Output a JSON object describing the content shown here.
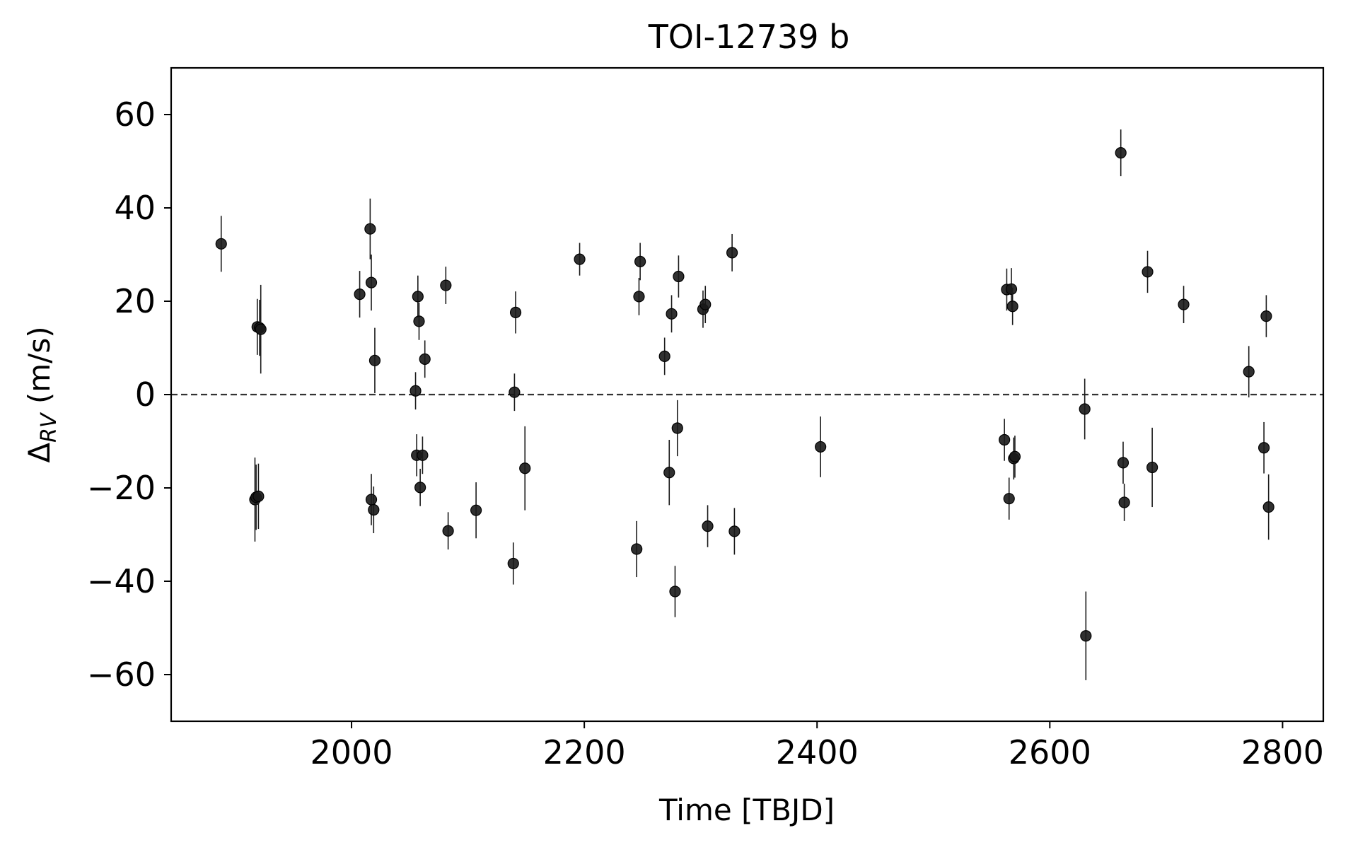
{
  "chart_data": {
    "type": "scatter",
    "title": "TOI-12739 b",
    "xlabel": "Time [TBJD]",
    "ylabel_main": "Δ",
    "ylabel_sub": "RV",
    "ylabel_unit": " (m/s)",
    "xlim": [
      1845,
      2835
    ],
    "ylim": [
      -70,
      70
    ],
    "xticks": [
      2000,
      2200,
      2400,
      2600,
      2800
    ],
    "yticks": [
      60,
      40,
      20,
      0,
      -20,
      -40,
      -60
    ],
    "xtick_labels": [
      "2000",
      "2200",
      "2400",
      "2600",
      "2800"
    ],
    "ytick_labels": [
      "60",
      "40",
      "20",
      "0",
      "−20",
      "−40",
      "−60"
    ],
    "grid": false,
    "reference_line": 0,
    "marker_color": "#1a1a1a",
    "points": [
      {
        "x": 1888,
        "y": 32.3,
        "err": 6.0
      },
      {
        "x": 1917,
        "y": -22.5,
        "err": 9.0
      },
      {
        "x": 1918,
        "y": -22.0,
        "err": 7.0
      },
      {
        "x": 1919,
        "y": 14.5,
        "err": 6.0
      },
      {
        "x": 1920,
        "y": -21.8,
        "err": 7.0
      },
      {
        "x": 1921,
        "y": 14.3,
        "err": 6.0
      },
      {
        "x": 1922,
        "y": 14.0,
        "err": 9.5
      },
      {
        "x": 2007,
        "y": 21.5,
        "err": 5.0
      },
      {
        "x": 2016,
        "y": 35.5,
        "err": 6.5
      },
      {
        "x": 2017,
        "y": 24.0,
        "err": 6.0
      },
      {
        "x": 2017,
        "y": -22.5,
        "err": 5.5
      },
      {
        "x": 2019,
        "y": -24.7,
        "err": 5.0
      },
      {
        "x": 2020,
        "y": 7.3,
        "err": 7.0
      },
      {
        "x": 2055,
        "y": 0.8,
        "err": 4.0
      },
      {
        "x": 2056,
        "y": -13.0,
        "err": 4.5
      },
      {
        "x": 2057,
        "y": 21.0,
        "err": 4.5
      },
      {
        "x": 2058,
        "y": 15.7,
        "err": 4.0
      },
      {
        "x": 2059,
        "y": -19.9,
        "err": 4.0
      },
      {
        "x": 2061,
        "y": -13.0,
        "err": 4.0
      },
      {
        "x": 2063,
        "y": 7.6,
        "err": 4.0
      },
      {
        "x": 2081,
        "y": 23.4,
        "err": 4.0
      },
      {
        "x": 2083,
        "y": -29.2,
        "err": 4.0
      },
      {
        "x": 2107,
        "y": -24.8,
        "err": 6.0
      },
      {
        "x": 2139,
        "y": -36.2,
        "err": 4.5
      },
      {
        "x": 2140,
        "y": 0.5,
        "err": 4.0
      },
      {
        "x": 2141,
        "y": 17.6,
        "err": 4.5
      },
      {
        "x": 2149,
        "y": -15.8,
        "err": 9.0
      },
      {
        "x": 2196,
        "y": 29.0,
        "err": 3.5
      },
      {
        "x": 2245,
        "y": -33.1,
        "err": 6.0
      },
      {
        "x": 2247,
        "y": 21.0,
        "err": 4.0
      },
      {
        "x": 2248,
        "y": 28.5,
        "err": 4.0
      },
      {
        "x": 2269,
        "y": 8.2,
        "err": 4.0
      },
      {
        "x": 2273,
        "y": -16.7,
        "err": 7.0
      },
      {
        "x": 2275,
        "y": 17.3,
        "err": 4.0
      },
      {
        "x": 2278,
        "y": -42.2,
        "err": 5.5
      },
      {
        "x": 2280,
        "y": -7.2,
        "err": 6.0
      },
      {
        "x": 2281,
        "y": 25.3,
        "err": 4.5
      },
      {
        "x": 2302,
        "y": 18.3,
        "err": 4.0
      },
      {
        "x": 2304,
        "y": 19.3,
        "err": 4.0
      },
      {
        "x": 2306,
        "y": -28.2,
        "err": 4.5
      },
      {
        "x": 2327,
        "y": 30.4,
        "err": 4.0
      },
      {
        "x": 2329,
        "y": -29.3,
        "err": 5.0
      },
      {
        "x": 2403,
        "y": -11.2,
        "err": 6.5
      },
      {
        "x": 2561,
        "y": -9.7,
        "err": 4.5
      },
      {
        "x": 2563,
        "y": 22.5,
        "err": 4.5
      },
      {
        "x": 2565,
        "y": -22.3,
        "err": 4.5
      },
      {
        "x": 2567,
        "y": 22.6,
        "err": 4.5
      },
      {
        "x": 2568,
        "y": 18.9,
        "err": 4.0
      },
      {
        "x": 2569,
        "y": -13.7,
        "err": 4.5
      },
      {
        "x": 2570,
        "y": -13.3,
        "err": 4.5
      },
      {
        "x": 2630,
        "y": -3.1,
        "err": 6.5
      },
      {
        "x": 2631,
        "y": -51.7,
        "err": 9.5
      },
      {
        "x": 2661,
        "y": 51.8,
        "err": 5.0
      },
      {
        "x": 2663,
        "y": -14.6,
        "err": 4.5
      },
      {
        "x": 2664,
        "y": -23.1,
        "err": 4.0
      },
      {
        "x": 2684,
        "y": 26.3,
        "err": 4.5
      },
      {
        "x": 2688,
        "y": -15.6,
        "err": 8.5
      },
      {
        "x": 2715,
        "y": 19.3,
        "err": 4.0
      },
      {
        "x": 2771,
        "y": 4.9,
        "err": 5.5
      },
      {
        "x": 2784,
        "y": -11.4,
        "err": 5.5
      },
      {
        "x": 2786,
        "y": 16.8,
        "err": 4.5
      },
      {
        "x": 2788,
        "y": -24.1,
        "err": 7.0
      }
    ]
  }
}
